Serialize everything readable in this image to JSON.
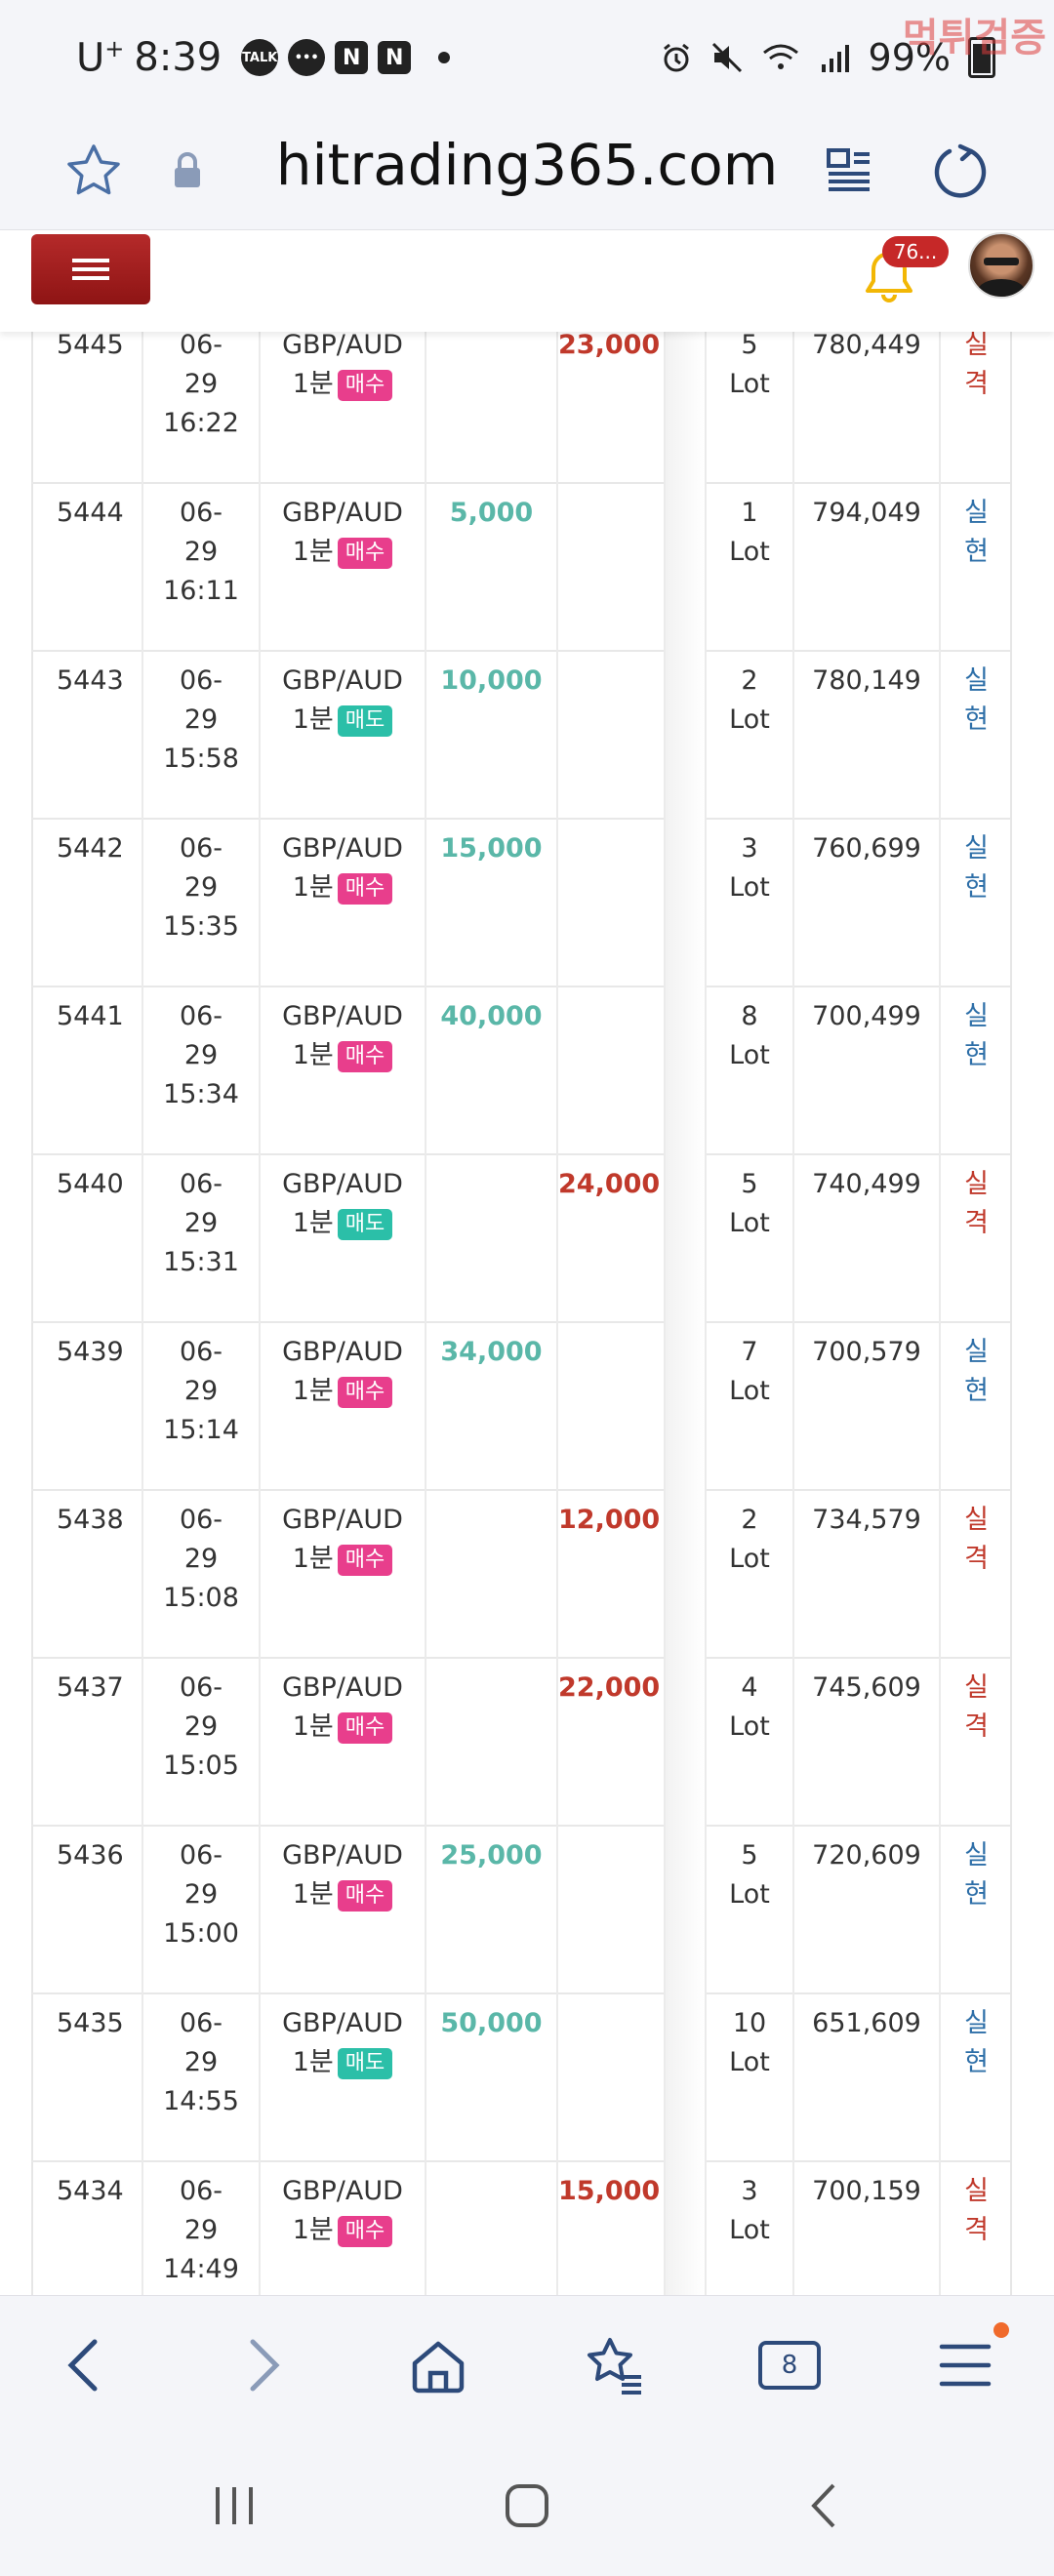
{
  "status_bar": {
    "carrier": "U",
    "carrier_sup": "+",
    "time": "8:39",
    "talk_icon_label": "TALK",
    "n_icon_label_1": "N",
    "n_icon_label_2": "N",
    "battery": "99%",
    "watermark": "먹튀검증"
  },
  "browser": {
    "url": "hitrading365.com",
    "tab_count": "8"
  },
  "header": {
    "notification_count": "76..."
  },
  "trades": [
    {
      "id": "5445",
      "date": "06-",
      "day": "29",
      "time": "16:22",
      "pair": "GBP/AUD",
      "period": "1분",
      "side": "매수",
      "side_type": "buy",
      "profit": "",
      "loss": "23,000",
      "lot_n": "5",
      "lot": "Lot",
      "balance": "780,449",
      "res1": "실",
      "res2": "격",
      "res_type": "loss"
    },
    {
      "id": "5444",
      "date": "06-",
      "day": "29",
      "time": "16:11",
      "pair": "GBP/AUD",
      "period": "1분",
      "side": "매수",
      "side_type": "buy",
      "profit": "5,000",
      "loss": "",
      "lot_n": "1",
      "lot": "Lot",
      "balance": "794,049",
      "res1": "실",
      "res2": "현",
      "res_type": "win"
    },
    {
      "id": "5443",
      "date": "06-",
      "day": "29",
      "time": "15:58",
      "pair": "GBP/AUD",
      "period": "1분",
      "side": "매도",
      "side_type": "sell",
      "profit": "10,000",
      "loss": "",
      "lot_n": "2",
      "lot": "Lot",
      "balance": "780,149",
      "res1": "실",
      "res2": "현",
      "res_type": "win"
    },
    {
      "id": "5442",
      "date": "06-",
      "day": "29",
      "time": "15:35",
      "pair": "GBP/AUD",
      "period": "1분",
      "side": "매수",
      "side_type": "buy",
      "profit": "15,000",
      "loss": "",
      "lot_n": "3",
      "lot": "Lot",
      "balance": "760,699",
      "res1": "실",
      "res2": "현",
      "res_type": "win"
    },
    {
      "id": "5441",
      "date": "06-",
      "day": "29",
      "time": "15:34",
      "pair": "GBP/AUD",
      "period": "1분",
      "side": "매수",
      "side_type": "buy",
      "profit": "40,000",
      "loss": "",
      "lot_n": "8",
      "lot": "Lot",
      "balance": "700,499",
      "res1": "실",
      "res2": "현",
      "res_type": "win"
    },
    {
      "id": "5440",
      "date": "06-",
      "day": "29",
      "time": "15:31",
      "pair": "GBP/AUD",
      "period": "1분",
      "side": "매도",
      "side_type": "sell",
      "profit": "",
      "loss": "24,000",
      "lot_n": "5",
      "lot": "Lot",
      "balance": "740,499",
      "res1": "실",
      "res2": "격",
      "res_type": "loss"
    },
    {
      "id": "5439",
      "date": "06-",
      "day": "29",
      "time": "15:14",
      "pair": "GBP/AUD",
      "period": "1분",
      "side": "매수",
      "side_type": "buy",
      "profit": "34,000",
      "loss": "",
      "lot_n": "7",
      "lot": "Lot",
      "balance": "700,579",
      "res1": "실",
      "res2": "현",
      "res_type": "win"
    },
    {
      "id": "5438",
      "date": "06-",
      "day": "29",
      "time": "15:08",
      "pair": "GBP/AUD",
      "period": "1분",
      "side": "매수",
      "side_type": "buy",
      "profit": "",
      "loss": "12,000",
      "lot_n": "2",
      "lot": "Lot",
      "balance": "734,579",
      "res1": "실",
      "res2": "격",
      "res_type": "loss"
    },
    {
      "id": "5437",
      "date": "06-",
      "day": "29",
      "time": "15:05",
      "pair": "GBP/AUD",
      "period": "1분",
      "side": "매수",
      "side_type": "buy",
      "profit": "",
      "loss": "22,000",
      "lot_n": "4",
      "lot": "Lot",
      "balance": "745,609",
      "res1": "실",
      "res2": "격",
      "res_type": "loss"
    },
    {
      "id": "5436",
      "date": "06-",
      "day": "29",
      "time": "15:00",
      "pair": "GBP/AUD",
      "period": "1분",
      "side": "매수",
      "side_type": "buy",
      "profit": "25,000",
      "loss": "",
      "lot_n": "5",
      "lot": "Lot",
      "balance": "720,609",
      "res1": "실",
      "res2": "현",
      "res_type": "win"
    },
    {
      "id": "5435",
      "date": "06-",
      "day": "29",
      "time": "14:55",
      "pair": "GBP/AUD",
      "period": "1분",
      "side": "매도",
      "side_type": "sell",
      "profit": "50,000",
      "loss": "",
      "lot_n": "10",
      "lot": "Lot",
      "balance": "651,609",
      "res1": "실",
      "res2": "현",
      "res_type": "win"
    },
    {
      "id": "5434",
      "date": "06-",
      "day": "29",
      "time": "14:49",
      "pair": "GBP/AUD",
      "period": "1분",
      "side": "매수",
      "side_type": "buy",
      "profit": "",
      "loss": "15,000",
      "lot_n": "3",
      "lot": "Lot",
      "balance": "700,159",
      "res1": "실",
      "res2": "격",
      "res_type": "loss"
    }
  ],
  "colors": {
    "accent_red": "#b52a2a",
    "profit": "#5ab7a8",
    "loss": "#c0392b",
    "buy_badge": "#e83e8c",
    "sell_badge": "#2bbfa8",
    "nav_icon": "#2d4a7a"
  }
}
